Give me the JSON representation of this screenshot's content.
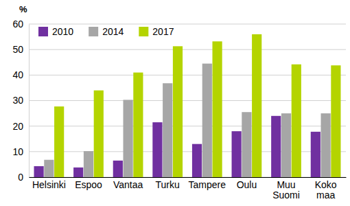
{
  "chart_data": {
    "type": "bar",
    "ylabel": "%",
    "categories": [
      "Helsinki",
      "Espoo",
      "Vantaa",
      "Turku",
      "Tampere",
      "Oulu",
      "Muu Suomi",
      "Koko maa"
    ],
    "series": [
      {
        "name": "2010",
        "color": "#7030a0",
        "values": [
          4.3,
          3.8,
          6.5,
          21.5,
          13.0,
          18.0,
          24.0,
          17.8
        ]
      },
      {
        "name": "2014",
        "color": "#a6a6a6",
        "values": [
          6.8,
          10.2,
          30.3,
          36.8,
          44.5,
          25.5,
          25.0,
          25.0
        ]
      },
      {
        "name": "2017",
        "color": "#b4d400",
        "values": [
          27.7,
          34.0,
          41.0,
          51.3,
          53.2,
          56.0,
          44.2,
          43.8
        ]
      }
    ],
    "ylim": [
      0,
      60
    ],
    "yticks": [
      0,
      10,
      20,
      30,
      40,
      50,
      60
    ],
    "grid": true,
    "legend": "upper left"
  }
}
